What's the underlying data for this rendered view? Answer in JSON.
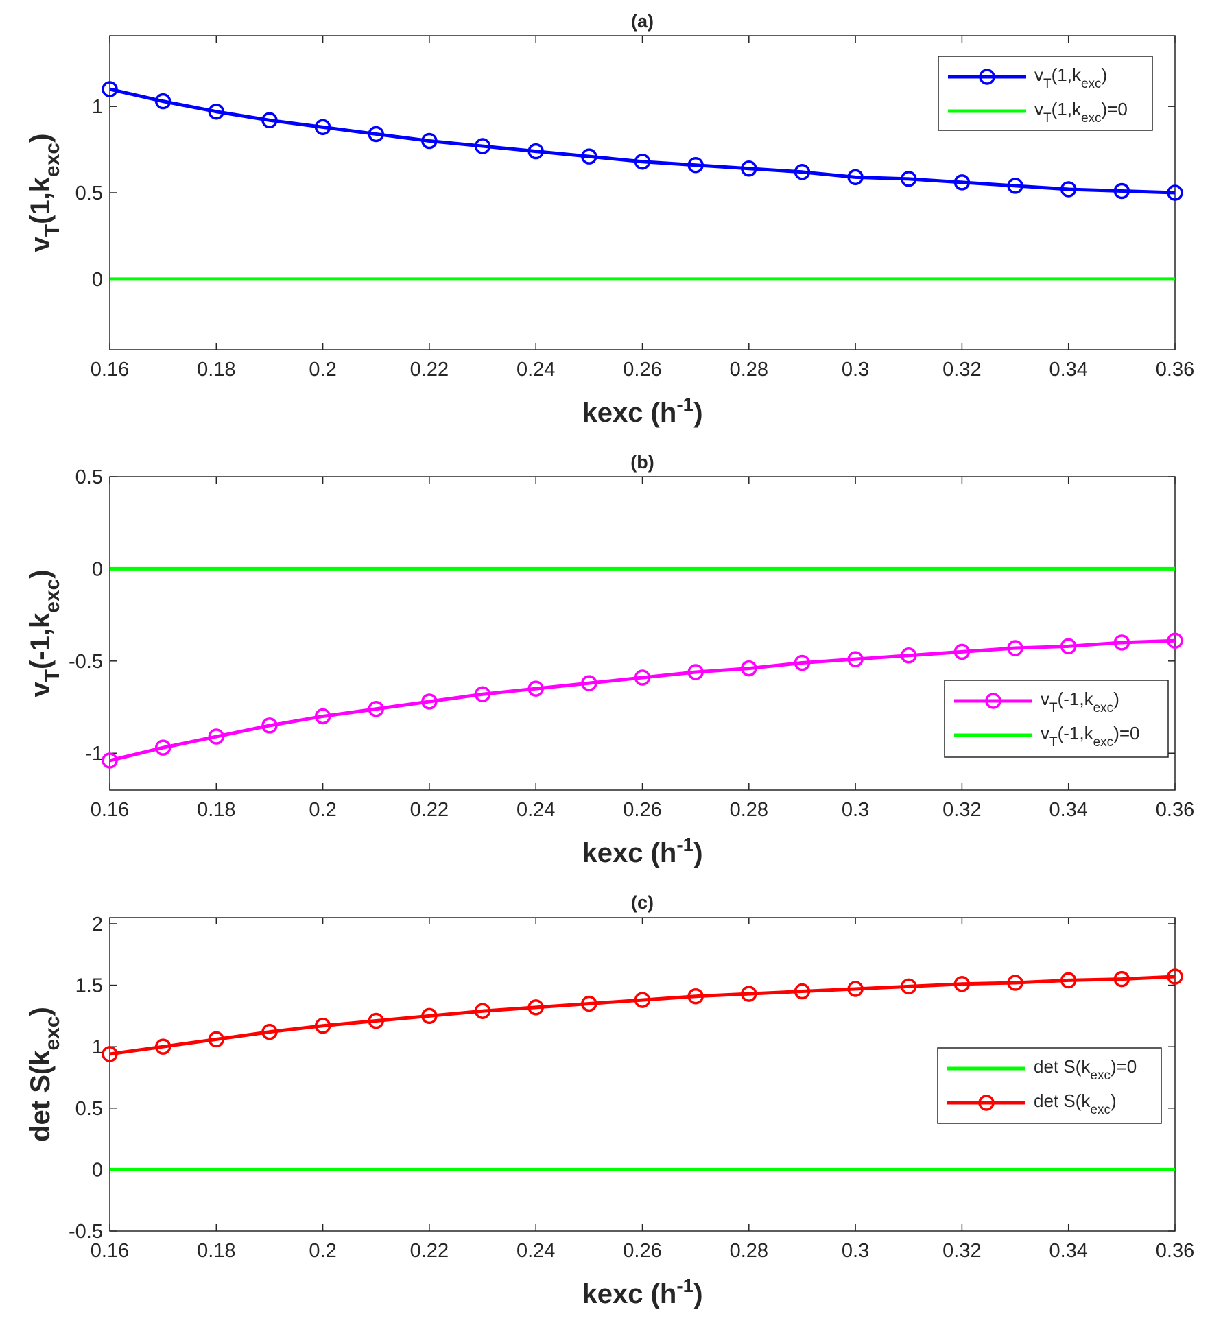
{
  "chart_data": [
    {
      "type": "line",
      "title": "(a)",
      "xlabel": {
        "main": "kexc (h",
        "sup": "-1",
        "close": ")"
      },
      "ylabel": {
        "pre": "v",
        "sub": "T",
        "mid": "(1,k",
        "sub2": "exc",
        "post": ")"
      },
      "xlim": [
        0.16,
        0.36
      ],
      "ylim": [
        -0.41,
        1.41
      ],
      "xticks": [
        0.16,
        0.18,
        0.2,
        0.22,
        0.24,
        0.26,
        0.28,
        0.3,
        0.32,
        0.34,
        0.36
      ],
      "xtick_labels": [
        "0.16",
        "0.18",
        "0.2",
        "0.22",
        "0.24",
        "0.26",
        "0.28",
        "0.3",
        "0.32",
        "0.34",
        "0.36"
      ],
      "yticks": [
        0,
        0.5,
        1
      ],
      "ytick_labels": [
        "0",
        "0.5",
        "1"
      ],
      "grid": false,
      "legend_position": "top-right",
      "series": [
        {
          "name": "vT(1,kexc)",
          "color": "#0000ff",
          "marker": "circle",
          "x": [
            0.16,
            0.17,
            0.18,
            0.19,
            0.2,
            0.21,
            0.22,
            0.23,
            0.24,
            0.25,
            0.26,
            0.27,
            0.28,
            0.29,
            0.3,
            0.31,
            0.32,
            0.33,
            0.34,
            0.35,
            0.36
          ],
          "values": [
            1.1,
            1.03,
            0.97,
            0.92,
            0.88,
            0.84,
            0.8,
            0.77,
            0.74,
            0.71,
            0.68,
            0.66,
            0.64,
            0.62,
            0.59,
            0.58,
            0.56,
            0.54,
            0.52,
            0.51,
            0.5
          ],
          "legend": {
            "pre": "v",
            "sub": "T",
            "mid": "(1,k",
            "sub2": "exc",
            "post": ")"
          }
        },
        {
          "name": "vT(1,kexc)=0",
          "color": "#00ff00",
          "marker": "none",
          "x": [
            0.16,
            0.36
          ],
          "values": [
            0,
            0
          ],
          "legend": {
            "pre": "v",
            "sub": "T",
            "mid": "(1,k",
            "sub2": "exc",
            "post": ")=0"
          }
        }
      ]
    },
    {
      "type": "line",
      "title": "(b)",
      "xlabel": {
        "main": "kexc (h",
        "sup": "-1",
        "close": ")"
      },
      "ylabel": {
        "pre": "v",
        "sub": "T",
        "mid": "(-1,k",
        "sub2": "exc",
        "post": ")"
      },
      "xlim": [
        0.16,
        0.36
      ],
      "ylim": [
        -1.2,
        0.5
      ],
      "xticks": [
        0.16,
        0.18,
        0.2,
        0.22,
        0.24,
        0.26,
        0.28,
        0.3,
        0.32,
        0.34,
        0.36
      ],
      "xtick_labels": [
        "0.16",
        "0.18",
        "0.2",
        "0.22",
        "0.24",
        "0.26",
        "0.28",
        "0.3",
        "0.32",
        "0.34",
        "0.36"
      ],
      "yticks": [
        -1,
        -0.5,
        0,
        0.5
      ],
      "ytick_labels": [
        "-1",
        "-0.5",
        "0",
        "0.5"
      ],
      "grid": false,
      "legend_position": "bottom-right",
      "series": [
        {
          "name": "vT(-1,kexc)",
          "color": "#ff00ff",
          "marker": "circle",
          "x": [
            0.16,
            0.17,
            0.18,
            0.19,
            0.2,
            0.21,
            0.22,
            0.23,
            0.24,
            0.25,
            0.26,
            0.27,
            0.28,
            0.29,
            0.3,
            0.31,
            0.32,
            0.33,
            0.34,
            0.35,
            0.36
          ],
          "values": [
            -1.04,
            -0.97,
            -0.91,
            -0.85,
            -0.8,
            -0.76,
            -0.72,
            -0.68,
            -0.65,
            -0.62,
            -0.59,
            -0.56,
            -0.54,
            -0.51,
            -0.49,
            -0.47,
            -0.45,
            -0.43,
            -0.42,
            -0.4,
            -0.39
          ],
          "legend": {
            "pre": "v",
            "sub": "T",
            "mid": "(-1,k",
            "sub2": "exc",
            "post": ")"
          }
        },
        {
          "name": "vT(-1,kexc)=0",
          "color": "#00ff00",
          "marker": "none",
          "x": [
            0.16,
            0.36
          ],
          "values": [
            0,
            0
          ],
          "legend": {
            "pre": "v",
            "sub": "T",
            "mid": "(-1,k",
            "sub2": "exc",
            "post": ")=0"
          }
        }
      ]
    },
    {
      "type": "line",
      "title": "(c)",
      "xlabel": {
        "main": "kexc (h",
        "sup": "-1",
        "close": ")"
      },
      "ylabel": {
        "pre": "det S(k",
        "sub": "exc",
        "mid": ")",
        "sub2": "",
        "post": ""
      },
      "xlim": [
        0.16,
        0.36
      ],
      "ylim": [
        -0.5,
        2.05
      ],
      "xticks": [
        0.16,
        0.18,
        0.2,
        0.22,
        0.24,
        0.26,
        0.28,
        0.3,
        0.32,
        0.34,
        0.36
      ],
      "xtick_labels": [
        "0.16",
        "0.18",
        "0.2",
        "0.22",
        "0.24",
        "0.26",
        "0.28",
        "0.3",
        "0.32",
        "0.34",
        "0.36"
      ],
      "yticks": [
        -0.5,
        0,
        0.5,
        1,
        1.5,
        2
      ],
      "ytick_labels": [
        "-0.5",
        "0",
        "0.5",
        "1",
        "1.5",
        "2"
      ],
      "grid": false,
      "legend_position": "right",
      "series": [
        {
          "name": "det S(kexc)=0",
          "color": "#00ff00",
          "marker": "none",
          "x": [
            0.16,
            0.36
          ],
          "values": [
            0,
            0
          ],
          "legend": {
            "pre": "det S(k",
            "sub": "exc",
            "mid": ")=0",
            "sub2": "",
            "post": ""
          }
        },
        {
          "name": "det S(kexc)",
          "color": "#ff0000",
          "marker": "circle",
          "x": [
            0.16,
            0.17,
            0.18,
            0.19,
            0.2,
            0.21,
            0.22,
            0.23,
            0.24,
            0.25,
            0.26,
            0.27,
            0.28,
            0.29,
            0.3,
            0.31,
            0.32,
            0.33,
            0.34,
            0.35,
            0.36
          ],
          "values": [
            0.94,
            1.0,
            1.06,
            1.12,
            1.17,
            1.21,
            1.25,
            1.29,
            1.32,
            1.35,
            1.38,
            1.41,
            1.43,
            1.45,
            1.47,
            1.49,
            1.51,
            1.52,
            1.54,
            1.55,
            1.57
          ],
          "legend": {
            "pre": "det S(k",
            "sub": "exc",
            "mid": ")",
            "sub2": "",
            "post": ""
          }
        }
      ]
    }
  ]
}
